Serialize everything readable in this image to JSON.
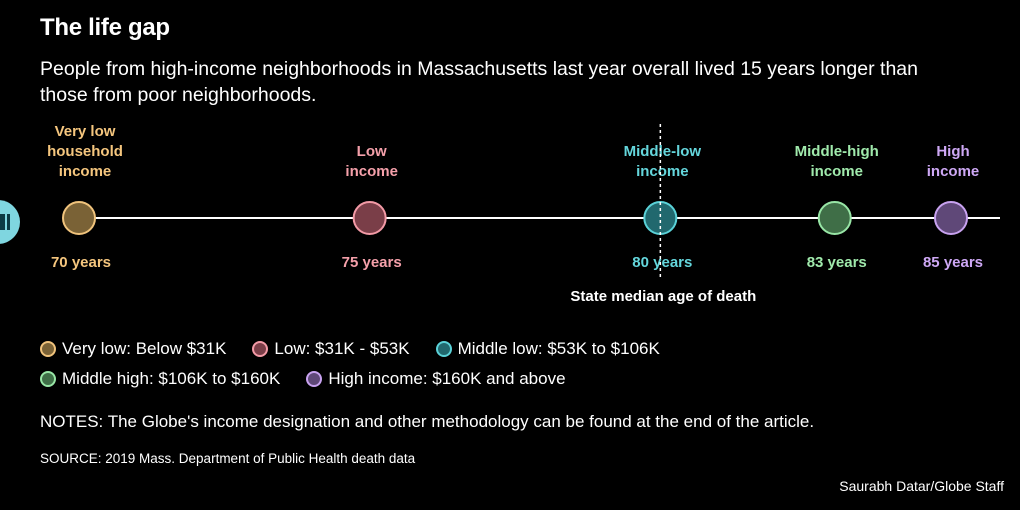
{
  "header": {
    "title": "The life gap",
    "subtitle": "People from high-income neighborhoods in Massachusetts last year overall lived 15 years longer than those from poor neighborhoods."
  },
  "chart_data": {
    "type": "scatter",
    "categories": [
      "Very low household income",
      "Low income",
      "Middle-low income",
      "Middle-high income",
      "High income"
    ],
    "category_lines": [
      [
        "Very low",
        "household",
        "income"
      ],
      [
        "Low",
        "income"
      ],
      [
        "Middle-low",
        "income"
      ],
      [
        "Middle-high",
        "income"
      ],
      [
        "High",
        "income"
      ]
    ],
    "values": [
      70,
      75,
      80,
      83,
      85
    ],
    "value_labels": [
      "70 years",
      "75 years",
      "80 years",
      "83 years",
      "85 years"
    ],
    "x_range": [
      70,
      85
    ],
    "reference_line": {
      "value": 80,
      "label": "State median age of death"
    },
    "colors": [
      {
        "fill": "#7a6236",
        "stroke": "#f0c37c",
        "text": "#f5c67e"
      },
      {
        "fill": "#7a3e48",
        "stroke": "#f39aa6",
        "text": "#f5a0aa"
      },
      {
        "fill": "#21686e",
        "stroke": "#5ad2d8",
        "text": "#64d6dc"
      },
      {
        "fill": "#3f6e47",
        "stroke": "#98e6a6",
        "text": "#a0eaac"
      },
      {
        "fill": "#5f4878",
        "stroke": "#c8a2f0",
        "text": "#cea8f5"
      }
    ],
    "axis_line_color": "#ffffff",
    "grid": false
  },
  "legend": {
    "rows": [
      [
        {
          "label": "Very low: Below $31K",
          "color_index": 0
        },
        {
          "label": "Low: $31K - $53K",
          "color_index": 1
        },
        {
          "label": "Middle low: $53K to $106K",
          "color_index": 2
        }
      ],
      [
        {
          "label": "Middle high: $106K to $160K",
          "color_index": 3
        },
        {
          "label": "High income: $160K and above",
          "color_index": 4
        }
      ]
    ]
  },
  "footer": {
    "notes": "NOTES: The Globe's income designation and other methodology can be found at the end of the article.",
    "source": "SOURCE: 2019 Mass. Department of Public Health death data",
    "credit": "Saurabh Datar/Globe Staff"
  },
  "controls": {
    "play_icon": "pause-icon"
  }
}
